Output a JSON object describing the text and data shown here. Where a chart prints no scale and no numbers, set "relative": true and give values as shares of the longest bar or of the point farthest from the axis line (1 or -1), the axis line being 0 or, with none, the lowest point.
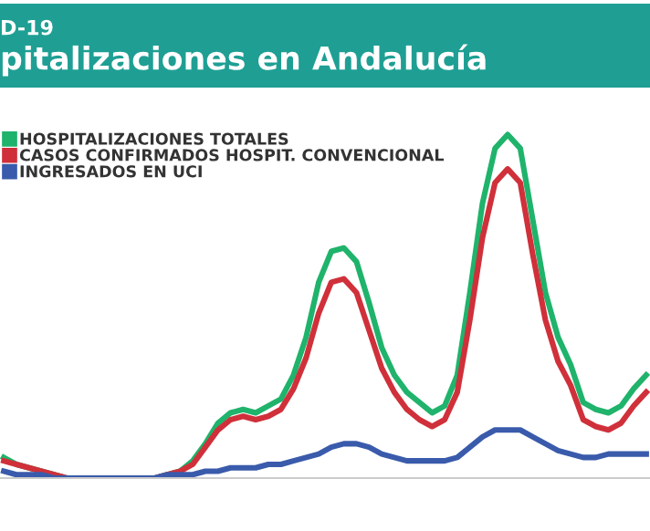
{
  "chart_data": {
    "type": "line",
    "title": "pitalizaciones en Andalucía",
    "subtitle": "D-19",
    "relative": true,
    "legend": "top left",
    "grid": false,
    "marker": "none",
    "line_style": "solid",
    "categories": [
      null,
      null,
      null,
      null,
      null,
      null,
      null,
      null,
      null,
      null,
      null,
      null,
      null,
      null,
      null,
      null,
      null,
      null,
      null,
      null,
      null,
      null,
      null,
      null,
      null,
      null,
      null,
      null,
      null,
      null,
      null,
      null,
      null,
      null,
      null,
      null,
      null,
      null,
      null,
      null,
      null,
      null,
      null,
      null,
      null,
      null,
      null,
      null,
      null,
      null,
      null,
      null
    ],
    "series": [
      {
        "name": "HOSPITALIZACIONES TOTALES",
        "color": "#1fb36b",
        "values": [
          0.06,
          0.04,
          0.03,
          0.02,
          0.01,
          0,
          0,
          0,
          0,
          0,
          0,
          0,
          0,
          0.01,
          0.02,
          0.05,
          0.1,
          0.16,
          0.19,
          0.2,
          0.19,
          0.21,
          0.23,
          0.3,
          0.41,
          0.57,
          0.66,
          0.67,
          0.63,
          0.51,
          0.38,
          0.3,
          0.25,
          0.22,
          0.19,
          0.21,
          0.3,
          0.54,
          0.8,
          0.96,
          1,
          0.96,
          0.75,
          0.54,
          0.41,
          0.33,
          0.22,
          0.2,
          0.19,
          0.21,
          0.26,
          0.3
        ]
      },
      {
        "name": "CASOS CONFIRMADOS HOSPIT. CONVENCIONAL",
        "color": "#d0303a",
        "values": [
          0.05,
          0.04,
          0.03,
          0.02,
          0.01,
          0,
          0,
          0,
          0,
          0,
          0,
          0,
          0,
          0.01,
          0.02,
          0.04,
          0.09,
          0.14,
          0.17,
          0.18,
          0.17,
          0.18,
          0.2,
          0.26,
          0.35,
          0.48,
          0.57,
          0.58,
          0.54,
          0.43,
          0.32,
          0.25,
          0.2,
          0.17,
          0.15,
          0.17,
          0.25,
          0.46,
          0.7,
          0.86,
          0.9,
          0.86,
          0.65,
          0.46,
          0.34,
          0.27,
          0.17,
          0.15,
          0.14,
          0.16,
          0.21,
          0.25
        ]
      },
      {
        "name": "INGRESADOS EN UCI",
        "color": "#3a5bab",
        "values": [
          0.02,
          0.01,
          0.01,
          0.01,
          0,
          0,
          0,
          0,
          0,
          0,
          0,
          0,
          0,
          0.01,
          0.01,
          0.01,
          0.02,
          0.02,
          0.03,
          0.03,
          0.03,
          0.04,
          0.04,
          0.05,
          0.06,
          0.07,
          0.09,
          0.1,
          0.1,
          0.09,
          0.07,
          0.06,
          0.05,
          0.05,
          0.05,
          0.05,
          0.06,
          0.09,
          0.12,
          0.14,
          0.14,
          0.14,
          0.12,
          0.1,
          0.08,
          0.07,
          0.06,
          0.06,
          0.07,
          0.07,
          0.07,
          0.07
        ]
      }
    ]
  }
}
